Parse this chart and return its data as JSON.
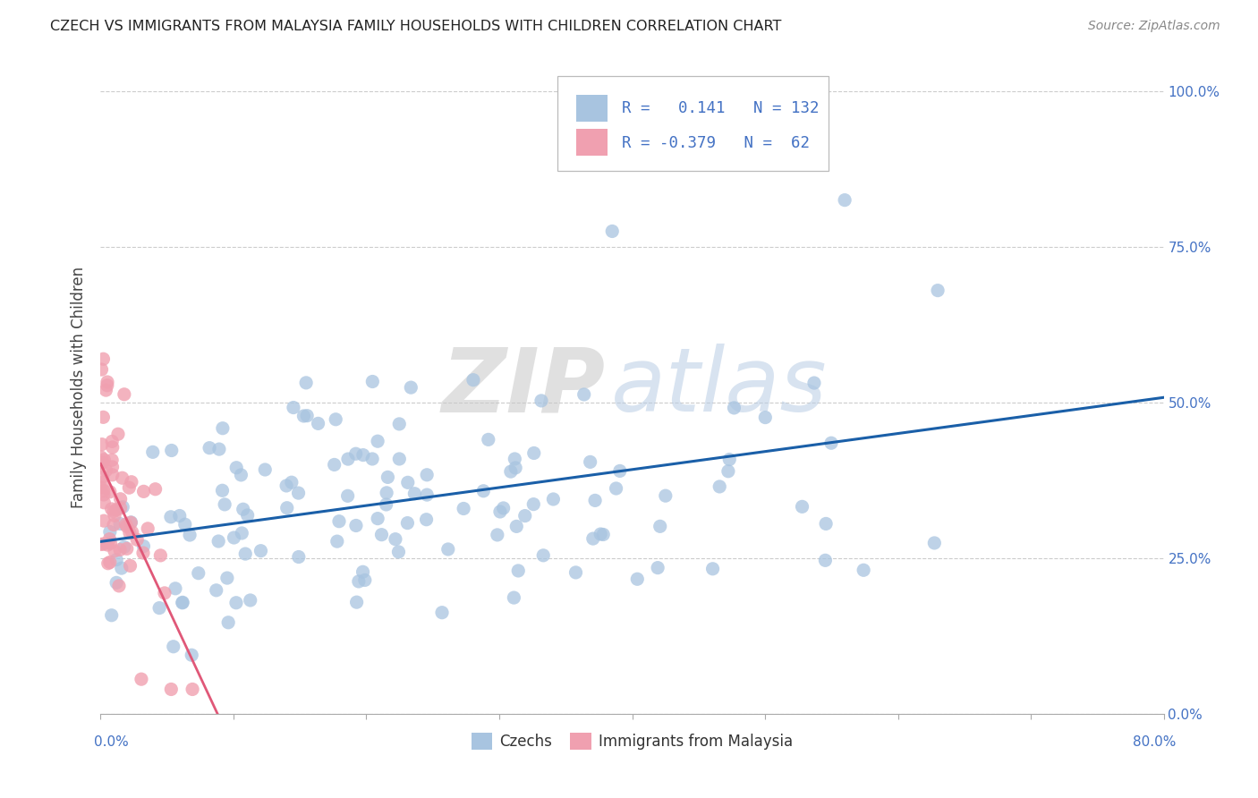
{
  "title": "CZECH VS IMMIGRANTS FROM MALAYSIA FAMILY HOUSEHOLDS WITH CHILDREN CORRELATION CHART",
  "source": "Source: ZipAtlas.com",
  "ylabel": "Family Households with Children",
  "xlim": [
    0.0,
    0.8
  ],
  "ylim": [
    0.0,
    1.05
  ],
  "watermark_zip": "ZIP",
  "watermark_atlas": "atlas",
  "czech_R": 0.141,
  "czech_N": 132,
  "malaysia_R": -0.379,
  "malaysia_N": 62,
  "czech_color": "#a8c4e0",
  "malaysia_color": "#f0a0b0",
  "czech_line_color": "#1a5fa8",
  "malaysia_line_color": "#e05878",
  "legend_label_czech": "Czechs",
  "legend_label_malaysia": "Immigrants from Malaysia",
  "right_ytick_color": "#4472c4",
  "bottom_label_color": "#4472c4"
}
